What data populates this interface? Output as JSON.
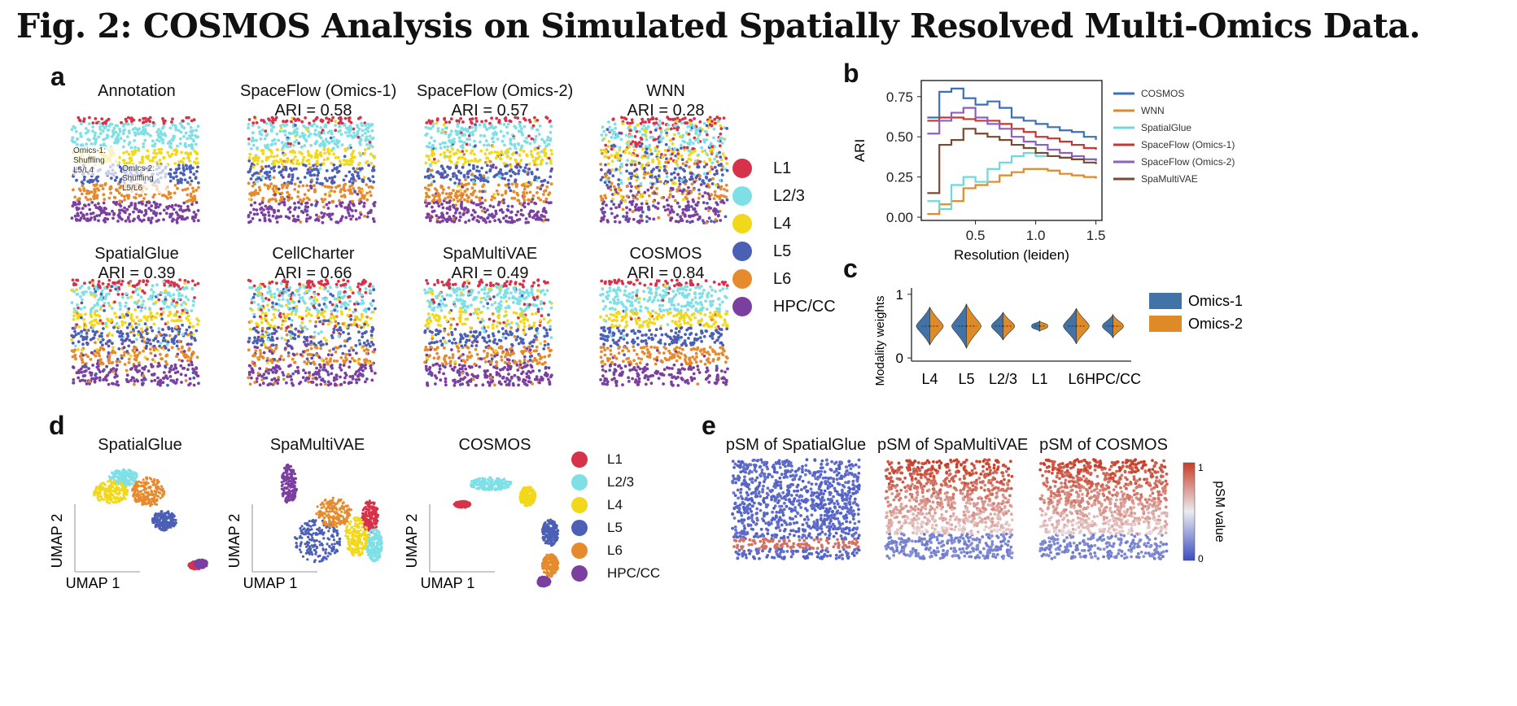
{
  "figure_title": "Fig. 2: COSMOS Analysis on Simulated Spatially Resolved Multi-Omics Data.",
  "colors": {
    "L1": "#d6334b",
    "L2/3": "#7ee0e6",
    "L4": "#f2d81a",
    "L5": "#4b5fb5",
    "L6": "#e68a2e",
    "HPC/CC": "#7b3fa0"
  },
  "panel_a": {
    "label": "a",
    "plots": [
      {
        "title": "Annotation",
        "ari": ""
      },
      {
        "title": "SpaceFlow (Omics-1)",
        "ari": "ARI = 0.58"
      },
      {
        "title": "SpaceFlow (Omics-2)",
        "ari": "ARI = 0.57"
      },
      {
        "title": "WNN",
        "ari": "ARI = 0.28"
      },
      {
        "title": "SpatialGlue",
        "ari": "ARI = 0.39"
      },
      {
        "title": "CellCharter",
        "ari": "ARI = 0.66"
      },
      {
        "title": "SpaMultiVAE",
        "ari": "ARI = 0.49"
      },
      {
        "title": "COSMOS",
        "ari": "ARI = 0.84"
      }
    ],
    "annotation_notes": {
      "omics1": "Omics-1: Shuffling L5/L4",
      "omics2": "Omics-2: Shuffling L5/L6"
    },
    "legend": [
      "L1",
      "L2/3",
      "L4",
      "L5",
      "L6",
      "HPC/CC"
    ]
  },
  "panel_b": {
    "label": "b",
    "chart_data": {
      "type": "line",
      "xlabel": "Resolution (leiden)",
      "ylabel": "ARI",
      "xlim": [
        0.05,
        1.55
      ],
      "ylim": [
        -0.02,
        0.85
      ],
      "xticks": [
        0.5,
        1.0,
        1.5
      ],
      "xtick_labels": [
        "0.5",
        "1.0",
        "1.5"
      ],
      "yticks": [
        0.0,
        0.25,
        0.5,
        0.75
      ],
      "ytick_labels": [
        "0.00",
        "0.25",
        "0.50",
        "0.75"
      ],
      "x": [
        0.1,
        0.2,
        0.3,
        0.4,
        0.5,
        0.6,
        0.7,
        0.8,
        0.9,
        1.0,
        1.1,
        1.2,
        1.3,
        1.4,
        1.5
      ],
      "series": [
        {
          "name": "COSMOS",
          "color": "#3b6fb6",
          "values": [
            0.62,
            0.78,
            0.8,
            0.74,
            0.7,
            0.72,
            0.68,
            0.62,
            0.6,
            0.58,
            0.56,
            0.54,
            0.53,
            0.5,
            0.48
          ]
        },
        {
          "name": "WNN",
          "color": "#e0892a",
          "values": [
            0.02,
            0.08,
            0.1,
            0.18,
            0.2,
            0.22,
            0.26,
            0.28,
            0.3,
            0.3,
            0.29,
            0.27,
            0.26,
            0.25,
            0.24
          ]
        },
        {
          "name": "SpatialGlue",
          "color": "#6fd8df",
          "values": [
            0.1,
            0.05,
            0.2,
            0.25,
            0.22,
            0.3,
            0.34,
            0.38,
            0.4,
            0.38,
            0.38,
            0.37,
            0.36,
            0.36,
            0.35
          ]
        },
        {
          "name": "SpaceFlow (Omics-1)",
          "color": "#c9352f",
          "values": [
            0.6,
            0.62,
            0.62,
            0.61,
            0.6,
            0.6,
            0.58,
            0.55,
            0.53,
            0.5,
            0.49,
            0.47,
            0.45,
            0.43,
            0.42
          ]
        },
        {
          "name": "SpaceFlow (Omics-2)",
          "color": "#8e5fc0",
          "values": [
            0.52,
            0.6,
            0.65,
            0.68,
            0.62,
            0.58,
            0.55,
            0.5,
            0.47,
            0.45,
            0.42,
            0.4,
            0.38,
            0.36,
            0.35
          ]
        },
        {
          "name": "SpaMultiVAE",
          "color": "#7a4a30",
          "values": [
            0.15,
            0.45,
            0.48,
            0.55,
            0.52,
            0.5,
            0.48,
            0.45,
            0.43,
            0.4,
            0.38,
            0.37,
            0.36,
            0.34,
            0.33
          ]
        }
      ]
    }
  },
  "panel_c": {
    "label": "c",
    "chart_data": {
      "type": "violin",
      "ylabel": "Modality weights",
      "categories": [
        "L4",
        "L5",
        "L2/3",
        "L1",
        "L6",
        "HPC/CC"
      ],
      "yticks": [
        0,
        1
      ],
      "ytick_labels": [
        "0",
        "1"
      ],
      "ylim": [
        -0.05,
        1.1
      ],
      "series": [
        {
          "name": "Omics-1",
          "color": "#4173a8",
          "spread": [
            0.3,
            0.35,
            0.22,
            0.08,
            0.28,
            0.18
          ],
          "median": [
            0.5,
            0.5,
            0.5,
            0.5,
            0.5,
            0.5
          ]
        },
        {
          "name": "Omics-2",
          "color": "#de8a27",
          "spread": [
            0.3,
            0.35,
            0.22,
            0.08,
            0.28,
            0.18
          ],
          "median": [
            0.5,
            0.5,
            0.5,
            0.5,
            0.5,
            0.5
          ]
        }
      ]
    }
  },
  "panel_d": {
    "label": "d",
    "plots": [
      {
        "title": "SpatialGlue",
        "xlabel": "UMAP 1",
        "ylabel": "UMAP 2"
      },
      {
        "title": "SpaMultiVAE",
        "xlabel": "UMAP 1",
        "ylabel": "UMAP 2"
      },
      {
        "title": "COSMOS",
        "xlabel": "UMAP 1",
        "ylabel": "UMAP 2"
      }
    ],
    "legend": [
      "L1",
      "L2/3",
      "L4",
      "L5",
      "L6",
      "HPC/CC"
    ]
  },
  "panel_e": {
    "label": "e",
    "plots": [
      {
        "title": "pSM of SpatialGlue"
      },
      {
        "title": "pSM of SpaMultiVAE"
      },
      {
        "title": "pSM of COSMOS"
      }
    ],
    "colorbar": {
      "label": "pSM value",
      "max": "1",
      "min": "0"
    }
  }
}
